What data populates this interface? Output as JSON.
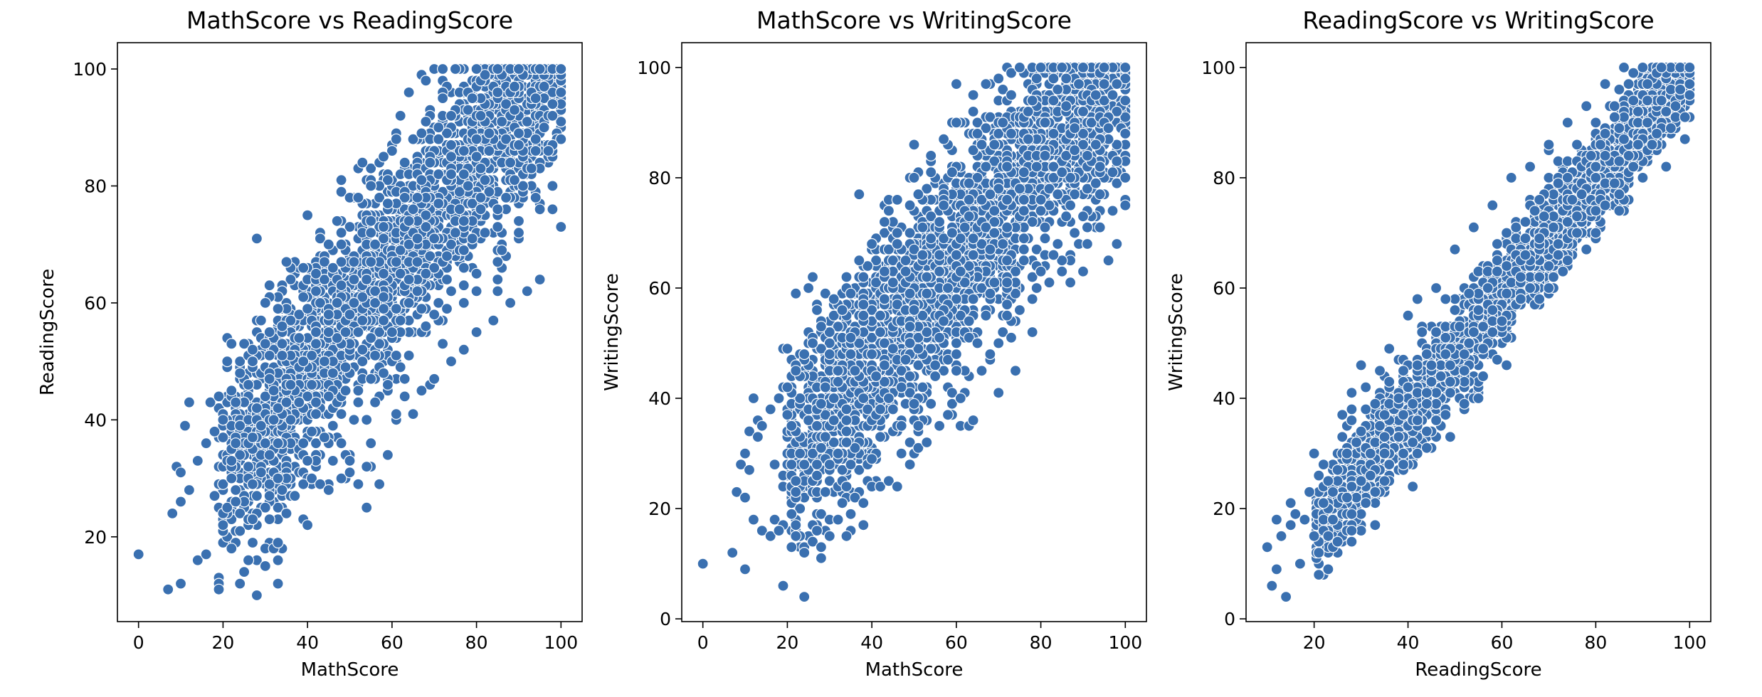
{
  "colors": {
    "point_fill": "#3a70b0",
    "point_edge": "#ffffff",
    "axes": "#000000",
    "background": "#ffffff"
  },
  "chart_data": [
    {
      "type": "scatter",
      "title": "MathScore vs ReadingScore",
      "xlabel": "MathScore",
      "ylabel": "ReadingScore",
      "xlim": [
        -5,
        105
      ],
      "ylim": [
        5.5,
        104.5
      ],
      "xticks": [
        0,
        20,
        40,
        60,
        80,
        100
      ],
      "yticks": [
        20,
        40,
        60,
        80,
        100
      ],
      "grid": false,
      "band": {
        "slope": 0.86,
        "intercept": 15,
        "spread": 12,
        "density_note_free": true
      },
      "points": [
        [
          0,
          17
        ],
        [
          7,
          11
        ],
        [
          10,
          12
        ],
        [
          11,
          39
        ],
        [
          12,
          43
        ],
        [
          9,
          32
        ],
        [
          10,
          31
        ],
        [
          8,
          24
        ],
        [
          10,
          26
        ],
        [
          12,
          28
        ],
        [
          14,
          16
        ],
        [
          16,
          17
        ],
        [
          17,
          43
        ],
        [
          19,
          11
        ],
        [
          19,
          44
        ],
        [
          20,
          22
        ],
        [
          22,
          18
        ],
        [
          24,
          12
        ],
        [
          25,
          14
        ],
        [
          26,
          16
        ],
        [
          27,
          19
        ],
        [
          28,
          10
        ],
        [
          30,
          15
        ],
        [
          32,
          18
        ],
        [
          33,
          12
        ],
        [
          33,
          19
        ],
        [
          31,
          23
        ],
        [
          35,
          24
        ],
        [
          37,
          27
        ],
        [
          39,
          23
        ],
        [
          40,
          22
        ],
        [
          41,
          30
        ],
        [
          43,
          29
        ],
        [
          45,
          28
        ],
        [
          48,
          30
        ],
        [
          50,
          31
        ],
        [
          52,
          29
        ],
        [
          54,
          32
        ],
        [
          57,
          29
        ],
        [
          59,
          34
        ],
        [
          61,
          41
        ],
        [
          63,
          44
        ],
        [
          65,
          41
        ],
        [
          40,
          75
        ],
        [
          45,
          70
        ],
        [
          48,
          72
        ],
        [
          52,
          78
        ],
        [
          55,
          80
        ],
        [
          58,
          85
        ],
        [
          61,
          88
        ],
        [
          62,
          92
        ],
        [
          64,
          96
        ],
        [
          68,
          98
        ],
        [
          72,
          100
        ],
        [
          75,
          100
        ],
        [
          80,
          100
        ],
        [
          85,
          100
        ],
        [
          90,
          100
        ],
        [
          95,
          100
        ],
        [
          100,
          100
        ],
        [
          100,
          73
        ],
        [
          98,
          76
        ],
        [
          95,
          64
        ],
        [
          92,
          62
        ],
        [
          88,
          60
        ],
        [
          84,
          57
        ],
        [
          80,
          55
        ],
        [
          77,
          52
        ],
        [
          74,
          50
        ],
        [
          70,
          47
        ],
        [
          67,
          45
        ],
        [
          35,
          67
        ],
        [
          30,
          60
        ],
        [
          27,
          52
        ],
        [
          24,
          48
        ],
        [
          22,
          45
        ],
        [
          20,
          40
        ],
        [
          18,
          38
        ],
        [
          16,
          36
        ],
        [
          14,
          33
        ]
      ]
    },
    {
      "type": "scatter",
      "title": "MathScore vs WritingScore",
      "xlabel": "MathScore",
      "ylabel": "WritingScore",
      "xlim": [
        -5,
        105
      ],
      "ylim": [
        -0.5,
        104.5
      ],
      "xticks": [
        0,
        20,
        40,
        60,
        80,
        100
      ],
      "yticks": [
        0,
        20,
        40,
        60,
        80,
        100
      ],
      "grid": false,
      "band": {
        "slope": 0.88,
        "intercept": 12,
        "spread": 13,
        "density_note_free": true
      },
      "points": [
        [
          0,
          10
        ],
        [
          7,
          12
        ],
        [
          10,
          9
        ],
        [
          12,
          40
        ],
        [
          13,
          36
        ],
        [
          11,
          34
        ],
        [
          10,
          30
        ],
        [
          9,
          28
        ],
        [
          8,
          23
        ],
        [
          10,
          22
        ],
        [
          12,
          18
        ],
        [
          14,
          16
        ],
        [
          16,
          15
        ],
        [
          18,
          16
        ],
        [
          19,
          6
        ],
        [
          21,
          19
        ],
        [
          22,
          15
        ],
        [
          24,
          4
        ],
        [
          24,
          12
        ],
        [
          26,
          14
        ],
        [
          28,
          13
        ],
        [
          30,
          15
        ],
        [
          32,
          18
        ],
        [
          34,
          15
        ],
        [
          36,
          22
        ],
        [
          38,
          21
        ],
        [
          40,
          24
        ],
        [
          42,
          24
        ],
        [
          44,
          25
        ],
        [
          46,
          24
        ],
        [
          49,
          28
        ],
        [
          51,
          31
        ],
        [
          53,
          32
        ],
        [
          56,
          35
        ],
        [
          58,
          37
        ],
        [
          61,
          40
        ],
        [
          63,
          35
        ],
        [
          64,
          36
        ],
        [
          66,
          45
        ],
        [
          68,
          48
        ],
        [
          70,
          50
        ],
        [
          72,
          55
        ],
        [
          75,
          56
        ],
        [
          78,
          62
        ],
        [
          80,
          63
        ],
        [
          85,
          63
        ],
        [
          90,
          63
        ],
        [
          96,
          65
        ],
        [
          98,
          68
        ],
        [
          100,
          75
        ],
        [
          100,
          80
        ],
        [
          100,
          100
        ],
        [
          95,
          100
        ],
        [
          90,
          100
        ],
        [
          85,
          100
        ],
        [
          80,
          100
        ],
        [
          75,
          100
        ],
        [
          70,
          98
        ],
        [
          67,
          97
        ],
        [
          64,
          92
        ],
        [
          60,
          90
        ],
        [
          57,
          87
        ],
        [
          54,
          84
        ],
        [
          50,
          80
        ],
        [
          46,
          76
        ],
        [
          43,
          72
        ],
        [
          40,
          68
        ],
        [
          37,
          65
        ],
        [
          34,
          62
        ],
        [
          31,
          58
        ],
        [
          28,
          53
        ],
        [
          26,
          50
        ],
        [
          24,
          48
        ],
        [
          22,
          45
        ],
        [
          20,
          42
        ],
        [
          18,
          40
        ],
        [
          16,
          38
        ],
        [
          14,
          35
        ],
        [
          13,
          33
        ],
        [
          11,
          27
        ]
      ]
    },
    {
      "type": "scatter",
      "title": "ReadingScore vs WritingScore",
      "xlabel": "ReadingScore",
      "ylabel": "WritingScore",
      "xlim": [
        5.5,
        104.5
      ],
      "ylim": [
        -0.5,
        104.5
      ],
      "xticks": [
        20,
        40,
        60,
        80,
        100
      ],
      "yticks": [
        0,
        20,
        40,
        60,
        80,
        100
      ],
      "grid": false,
      "band": {
        "slope": 1.05,
        "intercept": -4.5,
        "spread": 6,
        "density_note_free": true
      },
      "points": [
        [
          10,
          13
        ],
        [
          11,
          6
        ],
        [
          12,
          9
        ],
        [
          12,
          18
        ],
        [
          13,
          15
        ],
        [
          14,
          4
        ],
        [
          15,
          21
        ],
        [
          16,
          19
        ],
        [
          17,
          10
        ],
        [
          18,
          18
        ],
        [
          19,
          23
        ],
        [
          20,
          30
        ],
        [
          20,
          15
        ],
        [
          21,
          12
        ],
        [
          22,
          21
        ],
        [
          23,
          25
        ],
        [
          24,
          18
        ],
        [
          25,
          14
        ],
        [
          26,
          27
        ],
        [
          27,
          22
        ],
        [
          28,
          16
        ],
        [
          29,
          32
        ],
        [
          30,
          34
        ],
        [
          31,
          42
        ],
        [
          32,
          26
        ],
        [
          33,
          23
        ],
        [
          34,
          45
        ],
        [
          35,
          30
        ],
        [
          36,
          49
        ],
        [
          38,
          40
        ],
        [
          39,
          28
        ],
        [
          40,
          55
        ],
        [
          41,
          24
        ],
        [
          42,
          58
        ],
        [
          44,
          31
        ],
        [
          46,
          60
        ],
        [
          48,
          37
        ],
        [
          50,
          67
        ],
        [
          52,
          45
        ],
        [
          54,
          71
        ],
        [
          56,
          49
        ],
        [
          58,
          75
        ],
        [
          60,
          54
        ],
        [
          62,
          80
        ],
        [
          64,
          58
        ],
        [
          66,
          82
        ],
        [
          68,
          62
        ],
        [
          70,
          86
        ],
        [
          72,
          66
        ],
        [
          74,
          90
        ],
        [
          76,
          70
        ],
        [
          78,
          93
        ],
        [
          80,
          74
        ],
        [
          82,
          97
        ],
        [
          84,
          79
        ],
        [
          86,
          100
        ],
        [
          88,
          82
        ],
        [
          90,
          100
        ],
        [
          92,
          86
        ],
        [
          94,
          100
        ],
        [
          96,
          89
        ],
        [
          98,
          100
        ],
        [
          100,
          95
        ],
        [
          100,
          100
        ],
        [
          99,
          91
        ],
        [
          97,
          93
        ],
        [
          95,
          92
        ],
        [
          93,
          88
        ],
        [
          91,
          90
        ],
        [
          89,
          86
        ],
        [
          87,
          84
        ],
        [
          85,
          83
        ],
        [
          65,
          66
        ],
        [
          55,
          56
        ],
        [
          45,
          46
        ],
        [
          35,
          37
        ],
        [
          25,
          27
        ],
        [
          15,
          17
        ],
        [
          75,
          76
        ],
        [
          57,
          60
        ]
      ]
    }
  ]
}
